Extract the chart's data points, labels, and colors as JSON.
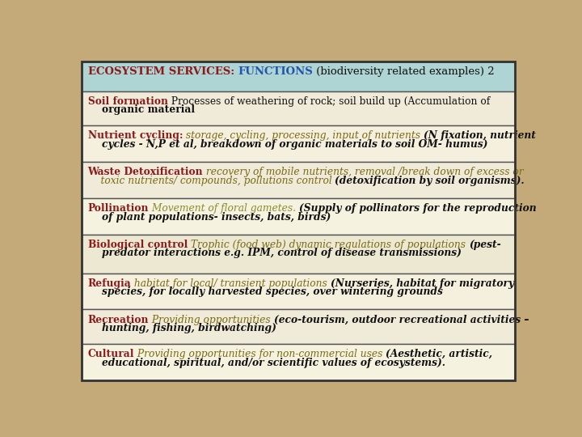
{
  "fig_width": 7.2,
  "fig_height": 5.4,
  "bg_color": "#c4aa78",
  "header_bg": "#aed4d4",
  "row_bgs": [
    "#f0ead8",
    "#f5f0de",
    "#f0ead8",
    "#f5f2e0",
    "#ece8d2",
    "#f5f0de",
    "#f0ead8",
    "#f5f2e0"
  ],
  "border_color": "#555555",
  "red": "#8B1A1A",
  "blue": "#2255AA",
  "olive": "#7B6A14",
  "tan": "#9B7B20",
  "black": "#111111",
  "darkred": "#8B0000",
  "rows": [
    {
      "type": "header",
      "segments": [
        {
          "text": "ECOSYSTEM SERVICES: ",
          "color": "#8B1A1A",
          "bold": true,
          "italic": false,
          "size": 9.5
        },
        {
          "text": "FUNCTIONS",
          "color": "#2255AA",
          "bold": true,
          "italic": false,
          "size": 9.5
        },
        {
          "text": " (biodiversity related examples) 2",
          "color": "#111111",
          "bold": false,
          "italic": false,
          "size": 9.5
        }
      ],
      "line2": null
    },
    {
      "type": "body",
      "segments": [
        {
          "text": "Soil formation",
          "color": "#8B1A1A",
          "bold": true,
          "italic": false,
          "size": 8.8
        },
        {
          "text": " Processes of weathering of rock; soil build up (Accumulation of",
          "color": "#111111",
          "bold": false,
          "italic": false,
          "size": 8.8
        }
      ],
      "line2": "    organic material",
      "line2_color": "#111111",
      "line2_bold": true,
      "line2_italic": false,
      "line2_size": 8.8
    },
    {
      "type": "body",
      "segments": [
        {
          "text": "Nutrient cycling:",
          "color": "#8B1A1A",
          "bold": true,
          "italic": false,
          "size": 8.8
        },
        {
          "text": " storage, cycling, processing, input of nutrients ",
          "color": "#7B6A14",
          "bold": false,
          "italic": true,
          "size": 8.8
        },
        {
          "text": "(N fixation, nutrient",
          "color": "#111111",
          "bold": true,
          "italic": true,
          "size": 8.8
        }
      ],
      "line2": "    cycles - N,P et al, breakdown of organic materials to soil OM- humus)",
      "line2_color": "#111111",
      "line2_bold": true,
      "line2_italic": true,
      "line2_size": 8.8
    },
    {
      "type": "body",
      "segments": [
        {
          "text": "Waste Detoxification",
          "color": "#8B1A1A",
          "bold": true,
          "italic": false,
          "size": 8.8
        },
        {
          "text": " recovery of mobile nutrients, removal /break down of excess or",
          "color": "#7B6A14",
          "bold": false,
          "italic": true,
          "size": 8.8
        }
      ],
      "line2_parts": [
        {
          "text": "    toxic nutrients/ compounds, pollutions control ",
          "color": "#7B6A14",
          "bold": false,
          "italic": true,
          "size": 8.8
        },
        {
          "text": "(detoxification by soil organisms).",
          "color": "#111111",
          "bold": true,
          "italic": true,
          "size": 8.8
        }
      ]
    },
    {
      "type": "body",
      "segments": [
        {
          "text": "Pollination",
          "color": "#8B1A1A",
          "bold": true,
          "italic": false,
          "size": 8.8
        },
        {
          "text": " Movement of floral gametes. ",
          "color": "#8B8B30",
          "bold": false,
          "italic": true,
          "size": 8.8
        },
        {
          "text": "(Supply of pollinators for the reproduction",
          "color": "#111111",
          "bold": true,
          "italic": true,
          "size": 8.8
        }
      ],
      "line2": "    of plant populations- insects, bats, birds)",
      "line2_color": "#111111",
      "line2_bold": true,
      "line2_italic": true,
      "line2_size": 8.8
    },
    {
      "type": "body",
      "segments": [
        {
          "text": "Biological control",
          "color": "#8B1A1A",
          "bold": true,
          "italic": false,
          "size": 8.8
        },
        {
          "text": " Trophic (food web) dynamic regulations of populations ",
          "color": "#7B6A14",
          "bold": false,
          "italic": true,
          "size": 8.8
        },
        {
          "text": "(pest-",
          "color": "#111111",
          "bold": true,
          "italic": true,
          "size": 8.8
        }
      ],
      "line2": "    predator interactions e.g. IPM, control of disease transmissions)",
      "line2_color": "#111111",
      "line2_bold": true,
      "line2_italic": true,
      "line2_size": 8.8
    },
    {
      "type": "body",
      "segments": [
        {
          "text": "Refugia",
          "color": "#8B1A1A",
          "bold": true,
          "italic": false,
          "size": 8.8
        },
        {
          "text": " habitat for local/ transient populations ",
          "color": "#7B6A14",
          "bold": false,
          "italic": true,
          "size": 8.8
        },
        {
          "text": "(Nurseries, habitat for migratory",
          "color": "#111111",
          "bold": true,
          "italic": true,
          "size": 8.8
        }
      ],
      "line2": "    species, for locally harvested species, over wintering grounds",
      "line2_color": "#111111",
      "line2_bold": true,
      "line2_italic": true,
      "line2_size": 8.8
    },
    {
      "type": "body",
      "segments": [
        {
          "text": "Recreation",
          "color": "#8B1A1A",
          "bold": true,
          "italic": false,
          "size": 8.8
        },
        {
          "text": " Providing opportunities ",
          "color": "#7B6A14",
          "bold": false,
          "italic": true,
          "size": 8.8
        },
        {
          "text": "(eco-tourism, outdoor recreational activities –",
          "color": "#111111",
          "bold": true,
          "italic": true,
          "size": 8.8
        }
      ],
      "line2": "    hunting, fishing, birdwatching)",
      "line2_color": "#111111",
      "line2_bold": true,
      "line2_italic": true,
      "line2_size": 8.8
    },
    {
      "type": "body",
      "segments": [
        {
          "text": "Cultural",
          "color": "#8B1A1A",
          "bold": true,
          "italic": false,
          "size": 8.8
        },
        {
          "text": " Providing opportunities for non-commercial uses ",
          "color": "#7B6A14",
          "bold": false,
          "italic": true,
          "size": 8.8
        },
        {
          "text": "(Aesthetic, artistic,",
          "color": "#111111",
          "bold": true,
          "italic": true,
          "size": 8.8
        }
      ],
      "line2": "    educational, spiritual, and/or scientific values of ecosystems).",
      "line2_color": "#111111",
      "line2_bold": true,
      "line2_italic": true,
      "line2_size": 8.8
    }
  ]
}
